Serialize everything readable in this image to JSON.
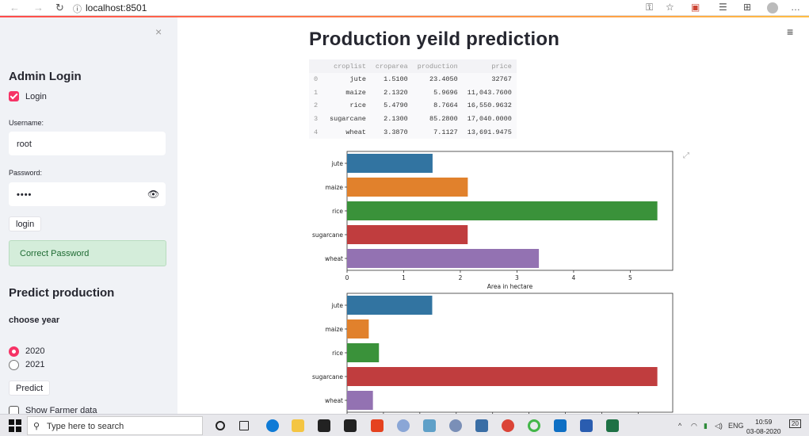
{
  "browser": {
    "url": "localhost:8501",
    "nav_back": "←",
    "nav_forward": "→",
    "nav_reload": "↻",
    "info_icon": "ⓘ"
  },
  "sidebar": {
    "close_glyph": "×",
    "admin_heading": "Admin Login",
    "login_checkbox_label": "Login",
    "login_checked": true,
    "username_label": "Username:",
    "username_value": "root",
    "password_label": "Password:",
    "password_value": "••••",
    "login_button": "login",
    "success_message": "Correct Password",
    "predict_heading": "Predict production",
    "year_heading": "choose year",
    "year_options": [
      "2020",
      "2021"
    ],
    "year_selected": "2020",
    "predict_button": "Predict",
    "show_farmer_label": "Show Farmer data",
    "show_farmer_checked": false
  },
  "main": {
    "title": "Production yeild prediction",
    "menu_glyph": "≡",
    "table": {
      "columns": [
        "",
        "croplist",
        "croparea",
        "production",
        "price"
      ],
      "rows": [
        [
          "0",
          "jute",
          "1.5100",
          "23.4050",
          "32767"
        ],
        [
          "1",
          "maize",
          "2.1320",
          "5.9696",
          "11,043.7600"
        ],
        [
          "2",
          "rice",
          "5.4790",
          "8.7664",
          "16,550.9632"
        ],
        [
          "3",
          "sugarcane",
          "2.1300",
          "85.2800",
          "17,040.0000"
        ],
        [
          "4",
          "wheat",
          "3.3870",
          "7.1127",
          "13,691.9475"
        ]
      ]
    }
  },
  "chart_data": [
    {
      "type": "bar",
      "orientation": "horizontal",
      "categories": [
        "jute",
        "maize",
        "rice",
        "sugarcane",
        "wheat"
      ],
      "values": [
        1.51,
        2.132,
        5.479,
        2.13,
        3.387
      ],
      "colors": [
        "#3274a1",
        "#e1812c",
        "#3a923a",
        "#c03d3e",
        "#9372b2"
      ],
      "xlabel": "Area in hectare",
      "xlim": [
        0,
        5.75
      ],
      "xticks": [
        0,
        1,
        2,
        3,
        4,
        5
      ]
    },
    {
      "type": "bar",
      "orientation": "horizontal",
      "categories": [
        "jute",
        "maize",
        "rice",
        "sugarcane",
        "wheat"
      ],
      "values": [
        23.405,
        5.9696,
        8.7664,
        85.28,
        7.1127
      ],
      "colors": [
        "#3274a1",
        "#e1812c",
        "#3a923a",
        "#c03d3e",
        "#9372b2"
      ],
      "xlim": [
        0,
        89.5
      ],
      "xticks": [
        0,
        10,
        20,
        30,
        40,
        50,
        60,
        70,
        80
      ]
    }
  ],
  "taskbar": {
    "search_placeholder": "Type here to search",
    "lang": "ENG",
    "time": "10:59",
    "date": "03-08-2020",
    "notification_count": "20"
  }
}
